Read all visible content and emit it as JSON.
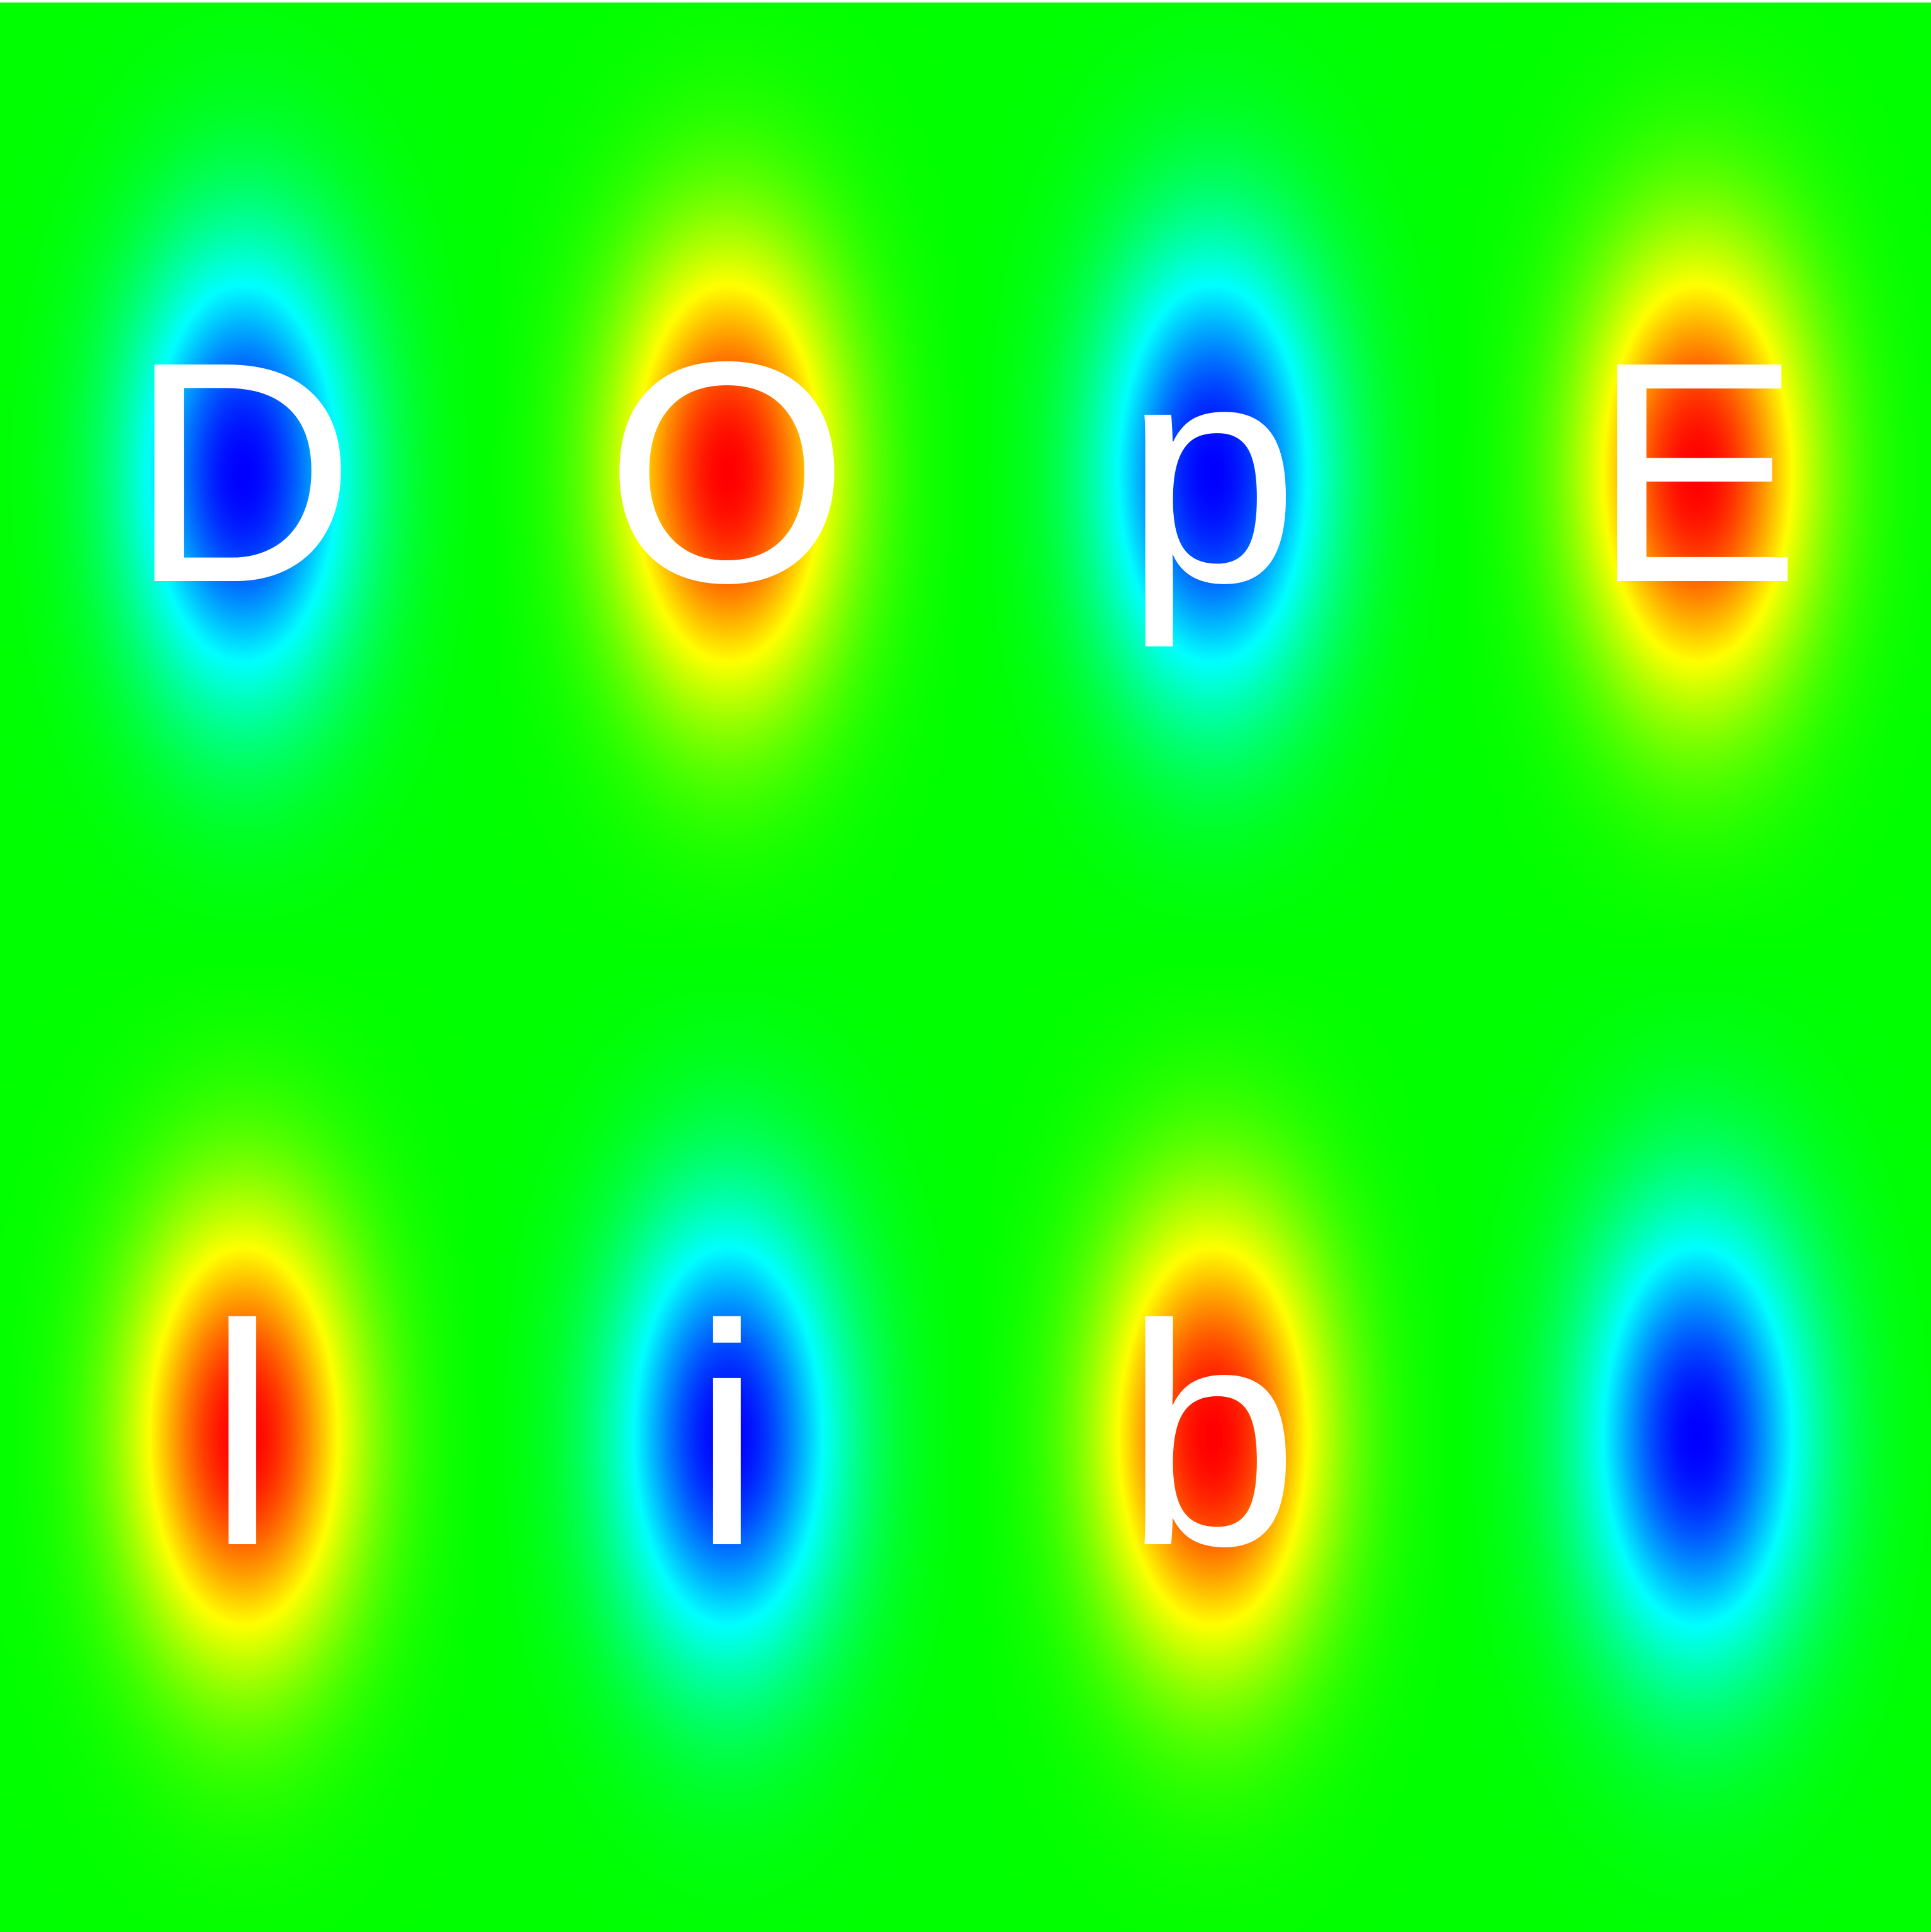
{
  "title": "",
  "colors": {
    "background": "#00ff00",
    "positive_peak": "#ff0000",
    "negative_peak": "#0000ff",
    "mid_high": "#ffff00",
    "mid_low": "#00ffff",
    "text": "#ffffff"
  },
  "field": {
    "rows": 2,
    "columns": 4,
    "blobs": [
      {
        "row": 0,
        "col": 0,
        "polarity": "negative"
      },
      {
        "row": 0,
        "col": 1,
        "polarity": "positive"
      },
      {
        "row": 0,
        "col": 2,
        "polarity": "negative"
      },
      {
        "row": 0,
        "col": 3,
        "polarity": "positive"
      },
      {
        "row": 1,
        "col": 0,
        "polarity": "positive"
      },
      {
        "row": 1,
        "col": 1,
        "polarity": "negative"
      },
      {
        "row": 1,
        "col": 2,
        "polarity": "positive"
      },
      {
        "row": 1,
        "col": 3,
        "polarity": "negative"
      }
    ]
  },
  "letters": [
    {
      "text": "D"
    },
    {
      "text": "O"
    },
    {
      "text": "p"
    },
    {
      "text": "E"
    },
    {
      "text": "l"
    },
    {
      "text": "i"
    },
    {
      "text": "b"
    },
    {
      "text": ""
    }
  ]
}
